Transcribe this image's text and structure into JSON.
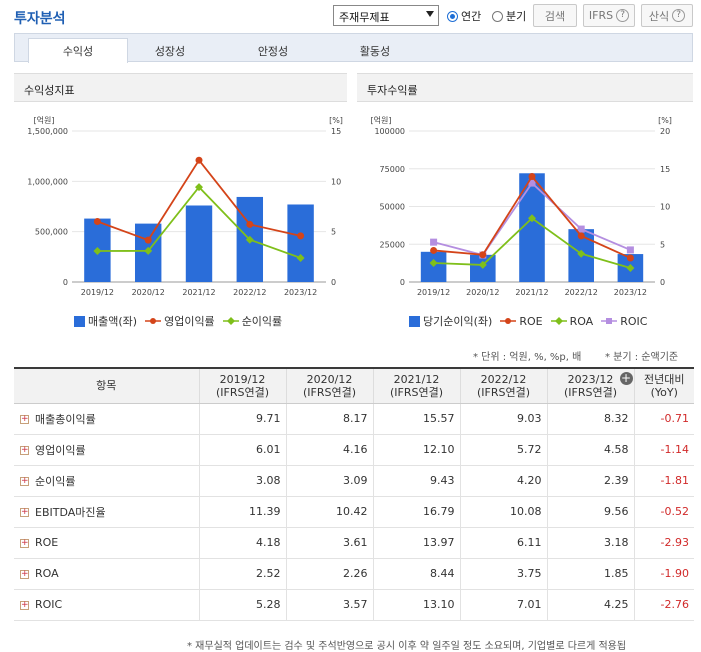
{
  "header": {
    "title": "투자분석",
    "select_value": "주재무제표",
    "radio_annual": "연간",
    "radio_quarter": "분기",
    "search_label": "검색",
    "ifrs_label": "IFRS",
    "calc_label": "산식"
  },
  "tabs": [
    "수익성",
    "성장성",
    "안정성",
    "활동성"
  ],
  "panels": {
    "left_title": "수익성지표",
    "right_title": "투자수익률"
  },
  "legend_left": [
    "매출액(좌)",
    "영업이익률",
    "순이익률"
  ],
  "legend_right": [
    "당기순이익(좌)",
    "ROE",
    "ROA",
    "ROIC"
  ],
  "notes": {
    "unit": "* 단위 : 억원, %, %p, 배",
    "quarter": "* 분기 : 순액기준",
    "footer": "* 재무실적 업데이트는 검수 및 주석반영으로 공시 이후 약 일주일 정도 소요되며, 기업별로 다르게 적용됩"
  },
  "colors": {
    "bar": "#2a6dd9",
    "op_margin": "#d44419",
    "net_margin": "#7fbf1a",
    "roic": "#b48ee0",
    "negative": "#d12a2a",
    "title": "#1f5fb3"
  },
  "chart_data": [
    {
      "type": "bar",
      "title": "수익성지표",
      "categories": [
        "2019/12",
        "2020/12",
        "2021/12",
        "2022/12",
        "2023/12"
      ],
      "y_left_unit": "[억원]",
      "y_right_unit": "[%]",
      "ylim_left": [
        0,
        1500000
      ],
      "ylim_right": [
        0,
        15
      ],
      "y_left_ticks": [
        "0",
        "500,000",
        "1,000,000",
        "1,500,000"
      ],
      "y_right_ticks": [
        "0",
        "5",
        "10",
        "15"
      ],
      "series": [
        {
          "name": "매출액(좌)",
          "kind": "bar",
          "axis": "left",
          "values": [
            630000,
            580000,
            760000,
            845000,
            770000
          ]
        },
        {
          "name": "영업이익률",
          "kind": "line",
          "axis": "right",
          "values": [
            6.01,
            4.16,
            12.1,
            5.72,
            4.58
          ]
        },
        {
          "name": "순이익률",
          "kind": "line",
          "axis": "right",
          "values": [
            3.08,
            3.09,
            9.43,
            4.2,
            2.39
          ]
        }
      ]
    },
    {
      "type": "bar",
      "title": "투자수익률",
      "categories": [
        "2019/12",
        "2020/12",
        "2021/12",
        "2022/12",
        "2023/12"
      ],
      "y_left_unit": "[억원]",
      "y_right_unit": "[%]",
      "ylim_left": [
        0,
        100000
      ],
      "ylim_right": [
        0,
        20
      ],
      "y_left_ticks": [
        "0",
        "25000",
        "50000",
        "75000",
        "100000"
      ],
      "y_right_ticks": [
        "0",
        "5",
        "10",
        "15",
        "20"
      ],
      "series": [
        {
          "name": "당기순이익(좌)",
          "kind": "bar",
          "axis": "left",
          "values": [
            20000,
            18000,
            72000,
            35000,
            18500
          ]
        },
        {
          "name": "ROE",
          "kind": "line",
          "axis": "right",
          "values": [
            4.18,
            3.61,
            13.97,
            6.11,
            3.18
          ]
        },
        {
          "name": "ROA",
          "kind": "line",
          "axis": "right",
          "values": [
            2.52,
            2.26,
            8.44,
            3.75,
            1.85
          ]
        },
        {
          "name": "ROIC",
          "kind": "line",
          "axis": "right",
          "values": [
            5.28,
            3.57,
            13.1,
            7.01,
            4.25
          ]
        }
      ]
    }
  ],
  "table": {
    "headers": [
      [
        "항목"
      ],
      [
        "2019/12",
        "(IFRS연결)"
      ],
      [
        "2020/12",
        "(IFRS연결)"
      ],
      [
        "2021/12",
        "(IFRS연결)"
      ],
      [
        "2022/12",
        "(IFRS연결)"
      ],
      [
        "2023/12",
        "(IFRS연결)"
      ],
      [
        "전년대비",
        "(YoY)"
      ]
    ],
    "rows": [
      {
        "label": "매출총이익률",
        "values": [
          "9.71",
          "8.17",
          "15.57",
          "9.03",
          "8.32"
        ],
        "yoy": "-0.71"
      },
      {
        "label": "영업이익률",
        "values": [
          "6.01",
          "4.16",
          "12.10",
          "5.72",
          "4.58"
        ],
        "yoy": "-1.14"
      },
      {
        "label": "순이익률",
        "values": [
          "3.08",
          "3.09",
          "9.43",
          "4.20",
          "2.39"
        ],
        "yoy": "-1.81"
      },
      {
        "label": "EBITDA마진율",
        "values": [
          "11.39",
          "10.42",
          "16.79",
          "10.08",
          "9.56"
        ],
        "yoy": "-0.52"
      },
      {
        "label": "ROE",
        "values": [
          "4.18",
          "3.61",
          "13.97",
          "6.11",
          "3.18"
        ],
        "yoy": "-2.93"
      },
      {
        "label": "ROA",
        "values": [
          "2.52",
          "2.26",
          "8.44",
          "3.75",
          "1.85"
        ],
        "yoy": "-1.90"
      },
      {
        "label": "ROIC",
        "values": [
          "5.28",
          "3.57",
          "13.10",
          "7.01",
          "4.25"
        ],
        "yoy": "-2.76"
      }
    ]
  }
}
